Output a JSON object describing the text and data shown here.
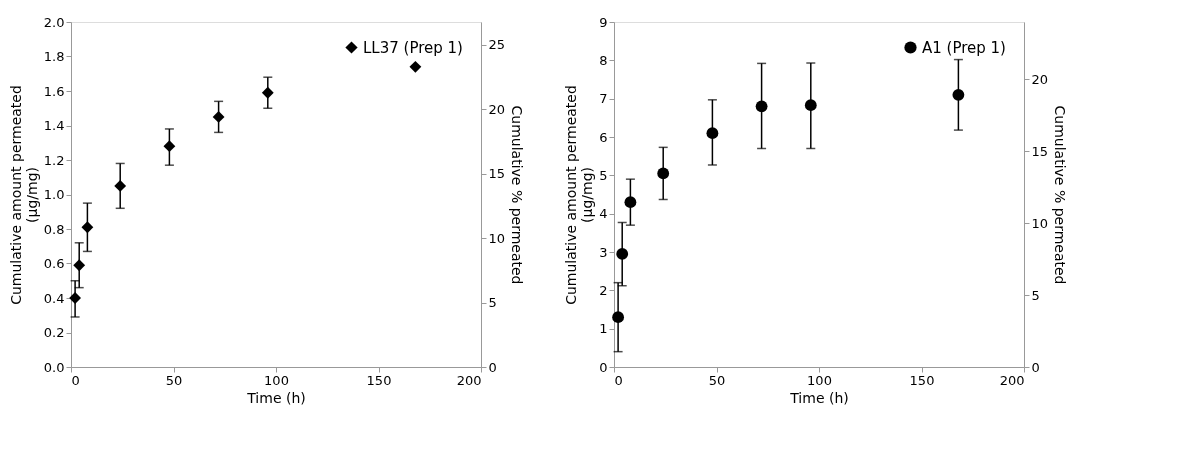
{
  "chart_data": [
    {
      "type": "scatter",
      "xlabel": "Time (h)",
      "ylabel": "Cumulative amount permeated (µg/mg)",
      "y2label": "Cumulative % permeated",
      "x": [
        2,
        4,
        8,
        24,
        48,
        72,
        96,
        168
      ],
      "series": [
        {
          "name": "LL37 (Prep 1)",
          "color": "#000000",
          "marker": "diamond",
          "values": [
            0.4,
            0.59,
            0.81,
            1.05,
            1.28,
            1.45,
            1.59,
            1.74
          ],
          "errors": [
            [
              0.29,
              0.5
            ],
            [
              0.46,
              0.72
            ],
            [
              0.67,
              0.95
            ],
            [
              0.92,
              1.18
            ],
            [
              1.17,
              1.38
            ],
            [
              1.36,
              1.54
            ],
            [
              1.5,
              1.68
            ],
            null
          ]
        }
      ],
      "xlim": [
        0,
        200
      ],
      "xticks": [
        0,
        50,
        100,
        150,
        200
      ],
      "ylim": [
        0,
        2.0
      ],
      "yticks": [
        {
          "value": 0,
          "label": "0.0"
        },
        0.2,
        0.4,
        0.6,
        0.8,
        {
          "value": 1,
          "label": "1.0"
        },
        1.2,
        1.4,
        1.6,
        1.8,
        {
          "value": 2,
          "label": "2.0"
        }
      ],
      "y2lim": [
        0,
        26.75
      ],
      "y2ticks": [
        0,
        5,
        10,
        15,
        20,
        25
      ],
      "grid": false,
      "legend": "top right"
    },
    {
      "type": "scatter",
      "xlabel": "Time (h)",
      "ylabel": "Cumulative amount permeated (µg/mg)",
      "y2label": "Cumulative % permeated",
      "x": [
        2,
        4,
        8,
        24,
        48,
        72,
        96,
        168
      ],
      "series": [
        {
          "name": "A1 (Prep 1)",
          "color": "#000000",
          "marker": "circle",
          "values": [
            1.3,
            2.95,
            4.3,
            5.05,
            6.1,
            6.8,
            6.83,
            7.1
          ],
          "errors": [
            [
              0.4,
              2.2
            ],
            [
              2.12,
              3.77
            ],
            [
              3.7,
              4.9
            ],
            [
              4.37,
              5.73
            ],
            [
              5.27,
              6.97
            ],
            [
              5.7,
              7.92
            ],
            [
              5.7,
              7.93
            ],
            [
              6.18,
              8.02
            ]
          ]
        }
      ],
      "xlim": [
        0,
        200
      ],
      "xticks": [
        0,
        50,
        100,
        150,
        200
      ],
      "ylim": [
        0,
        9
      ],
      "yticks": [
        0,
        1,
        2,
        3,
        4,
        5,
        6,
        7,
        8,
        9
      ],
      "y2lim": [
        0,
        24
      ],
      "y2ticks": [
        0,
        5,
        10,
        15,
        20
      ],
      "grid": false,
      "legend": "top right"
    }
  ]
}
